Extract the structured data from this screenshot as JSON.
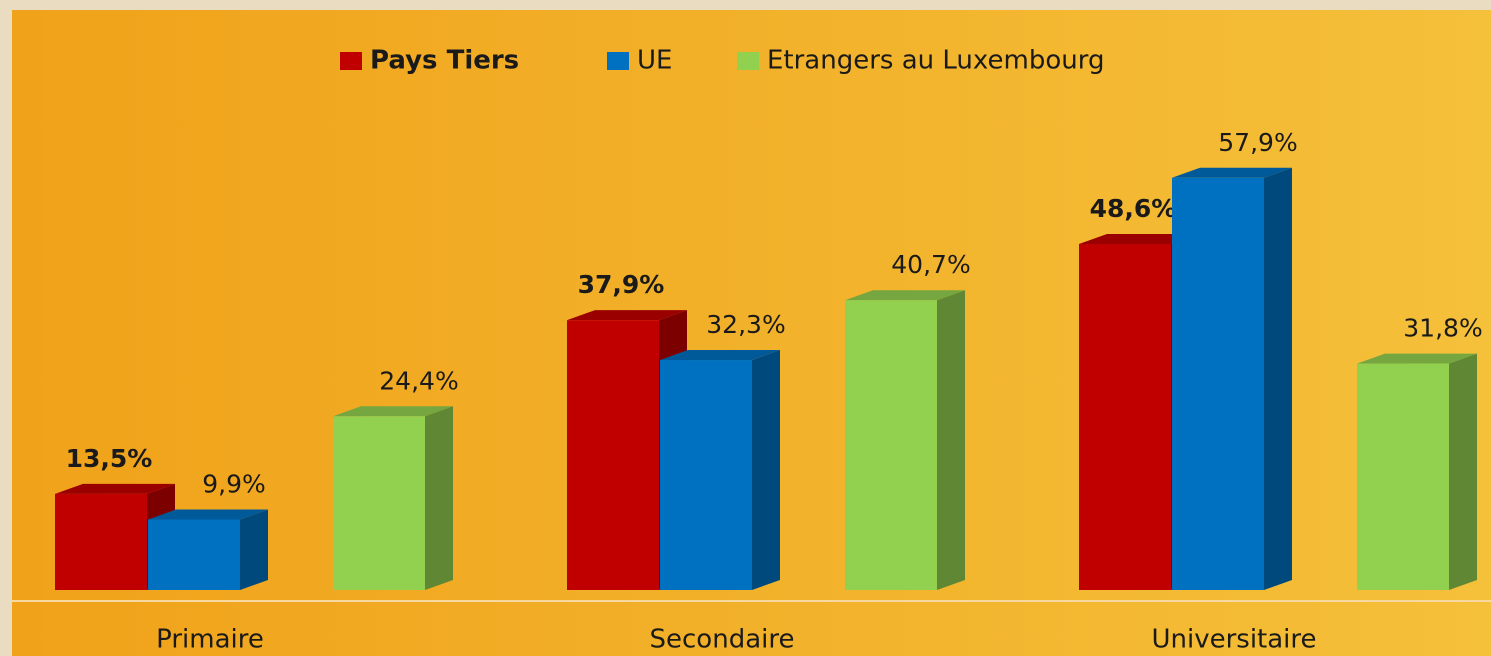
{
  "chart_data": {
    "type": "bar3d",
    "categories": [
      "Primaire",
      "Secondaire",
      "Universitaire"
    ],
    "series": [
      {
        "name": "Pays Tiers",
        "color": "#c00000",
        "values": [
          13.5,
          37.9,
          48.6
        ],
        "value_labels": [
          "13,5%",
          "37,9%",
          "48,6%"
        ]
      },
      {
        "name": "UE",
        "color": "#0070c0",
        "values": [
          9.9,
          32.3,
          57.9
        ],
        "value_labels": [
          "9,9%",
          "32,3%",
          "57,9%"
        ]
      },
      {
        "name": "Etrangers au Luxembourg",
        "color": "#92d050",
        "values": [
          24.4,
          40.7,
          31.8
        ],
        "value_labels": [
          "24,4%",
          "40,7%",
          "31,8%"
        ]
      }
    ],
    "legend": "top"
  }
}
